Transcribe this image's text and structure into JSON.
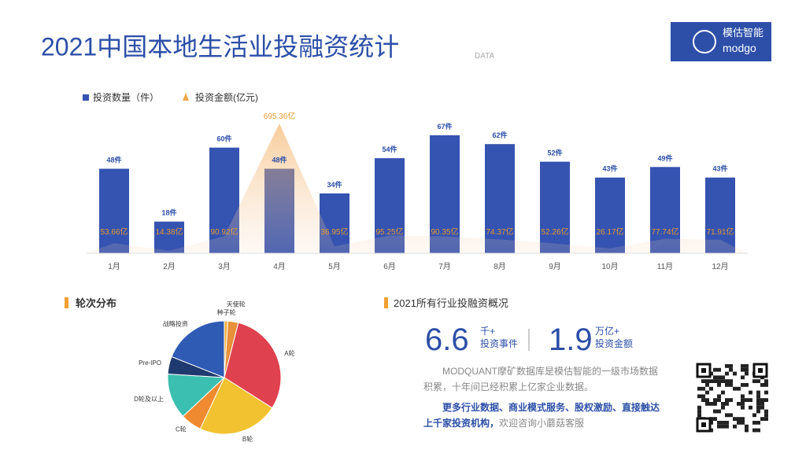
{
  "header": {
    "title": "2021中国本地生活业投融资统计",
    "subtitle": "DATA",
    "logo_cn": "模估智能",
    "logo_en": "modgo"
  },
  "chart_data": [
    {
      "type": "bar",
      "categories": [
        "1月",
        "2月",
        "3月",
        "4月",
        "5月",
        "6月",
        "7月",
        "8月",
        "9月",
        "10月",
        "11月",
        "12月"
      ],
      "series": [
        {
          "name": "投资数量（件）",
          "color": "#3553b0",
          "values": [
            48,
            18,
            60,
            48,
            34,
            54,
            67,
            62,
            52,
            43,
            49,
            43
          ],
          "value_labels": [
            "48件",
            "18件",
            "60件",
            "48件",
            "34件",
            "54件",
            "67件",
            "62件",
            "52件",
            "43件",
            "49件",
            "43件"
          ]
        },
        {
          "name": "投资金额(亿元)",
          "color": "#f0a84a",
          "values": [
            53.66,
            14.38,
            90.92,
            695.36,
            36.95,
            95.25,
            90.35,
            74.37,
            52.26,
            26.17,
            77.74,
            71.91
          ],
          "value_labels": [
            "53.66亿",
            "14.38亿",
            "90.92亿",
            "695.36亿",
            "36.95亿",
            "95.25亿",
            "90.35亿",
            "74.37亿",
            "52.26亿",
            "26.17亿",
            "77.74亿",
            "71.91亿"
          ]
        }
      ]
    },
    {
      "type": "pie",
      "title": "轮次分布",
      "categories": [
        "种子轮",
        "天使轮",
        "A轮",
        "B轮",
        "C轮",
        "D轮及以上",
        "Pre-IPO",
        "战略投资"
      ],
      "values": [
        1,
        3,
        30,
        23,
        6,
        13,
        5,
        19
      ],
      "colors": [
        "#f5b041",
        "#e8903a",
        "#e0414f",
        "#f2c230",
        "#f08a30",
        "#3bbfb0",
        "#1f3a6e",
        "#2f5bb5"
      ]
    }
  ],
  "summary": {
    "title": "2021所有行业投融资概况",
    "stats": [
      {
        "value": "6.6",
        "unit": "千+",
        "label": "投资事件"
      },
      {
        "value": "1.9",
        "unit": "万亿+",
        "label": "投资金额"
      }
    ],
    "paragraph1": "MODQUANT摩矿数据库是模估智能的一级市场数据积累，十年间已经积累上亿家企业数据。",
    "paragraph2_bold": "更多行业数据、商业模式服务、股权激励、直接触达上千家投资机构，",
    "paragraph2_plain": "欢迎咨询小蘑菇客服"
  }
}
